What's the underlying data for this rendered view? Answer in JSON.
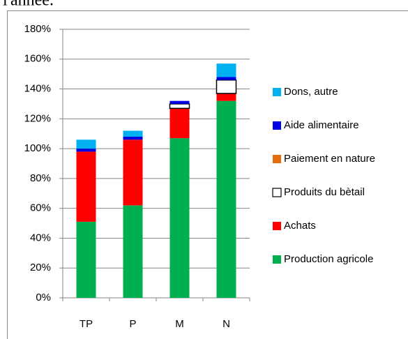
{
  "header_text": "l'année.",
  "chart_data": {
    "type": "stacked-bar",
    "categories": [
      "TP",
      "P",
      "M",
      "N"
    ],
    "series": [
      {
        "name": "Production agricole",
        "color": "#00b050",
        "values": [
          51,
          62,
          107,
          132
        ]
      },
      {
        "name": "Achats",
        "color": "#ff0000",
        "values": [
          47,
          44,
          20,
          5
        ]
      },
      {
        "name": "Produits du bètail",
        "color": "#ffffff",
        "values": [
          0,
          0,
          3,
          9
        ]
      },
      {
        "name": "Paiement en nature",
        "color": "#e46c0a",
        "values": [
          0,
          0,
          0,
          0
        ]
      },
      {
        "name": "Aide alimentaire",
        "color": "#0000e0",
        "values": [
          2,
          2,
          2,
          2
        ]
      },
      {
        "name": "Dons, autre",
        "color": "#00b0f0",
        "values": [
          6,
          4,
          0,
          9
        ]
      }
    ],
    "ylim": [
      0,
      180
    ],
    "yticks": [
      {
        "value": 0,
        "label": "0%"
      },
      {
        "value": 20,
        "label": "20%"
      },
      {
        "value": 40,
        "label": "40%"
      },
      {
        "value": 60,
        "label": "60%"
      },
      {
        "value": 80,
        "label": "80%"
      },
      {
        "value": 100,
        "label": "100%"
      },
      {
        "value": 120,
        "label": "120%"
      },
      {
        "value": 140,
        "label": "140%"
      },
      {
        "value": 160,
        "label": "160%"
      },
      {
        "value": 180,
        "label": "180%"
      }
    ],
    "grid": true,
    "legend": "right"
  }
}
